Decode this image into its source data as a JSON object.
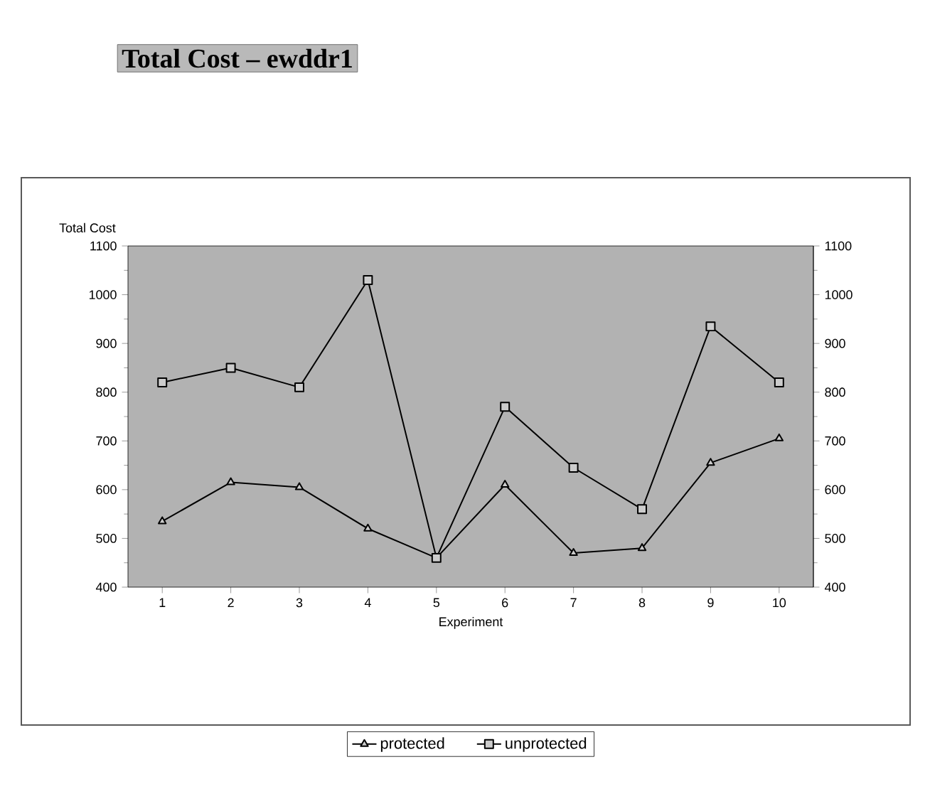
{
  "chart_data": {
    "type": "line",
    "title": "Total Cost – ewddr1",
    "ylabel": "Total Cost",
    "xlabel": "Experiment",
    "categories": [
      "1",
      "2",
      "3",
      "4",
      "5",
      "6",
      "7",
      "8",
      "9",
      "10"
    ],
    "series": [
      {
        "name": "protected",
        "color": "#000000",
        "marker": "triangle",
        "values": [
          535,
          615,
          605,
          520,
          460,
          610,
          470,
          480,
          655,
          705
        ]
      },
      {
        "name": "unprotected",
        "color": "#000000",
        "marker": "square",
        "values": [
          820,
          850,
          810,
          1030,
          460,
          770,
          645,
          560,
          935,
          820
        ]
      }
    ],
    "ylim": [
      400,
      1100
    ],
    "yticks": [
      400,
      500,
      600,
      700,
      800,
      900,
      1000,
      1100
    ],
    "y2lim": [
      400,
      1100
    ],
    "y2ticks": [
      400,
      500,
      600,
      700,
      800,
      900,
      1000,
      1100
    ],
    "legend": "bottom",
    "grid": false,
    "line_style": "solid"
  }
}
